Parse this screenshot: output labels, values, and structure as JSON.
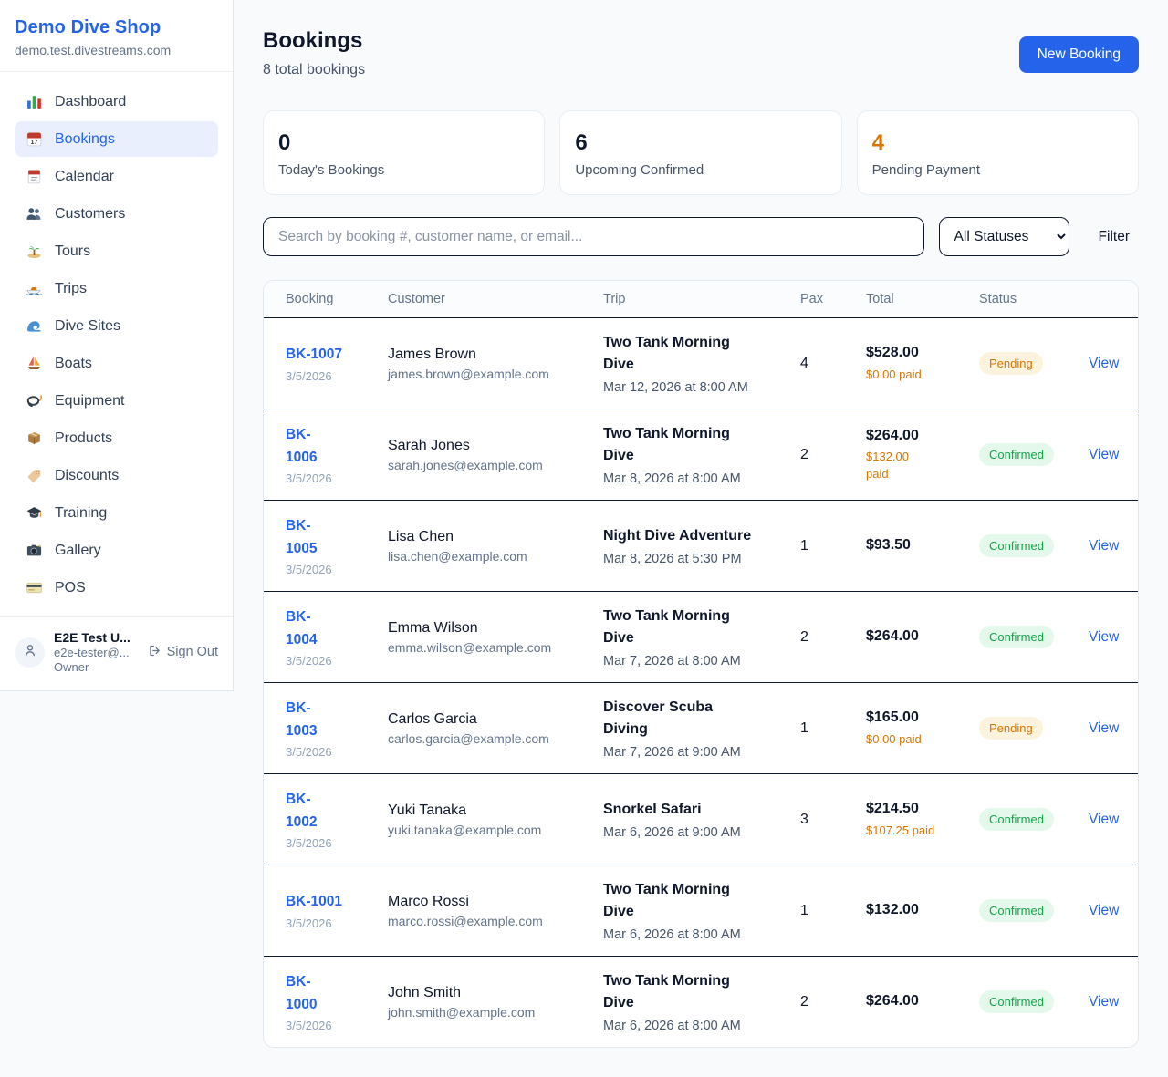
{
  "colors": {
    "accent_blue": "#2563eb",
    "pending_orange": "#d97706",
    "confirmed_green": "#16a34a",
    "page_background": "#f8fafc"
  },
  "sidebar": {
    "brand": {
      "name": "Demo Dive Shop",
      "domain": "demo.test.divestreams.com"
    },
    "items": [
      {
        "label": "Dashboard",
        "icon": "bar-chart-icon",
        "active": false
      },
      {
        "label": "Bookings",
        "icon": "calendar-date-icon",
        "active": true
      },
      {
        "label": "Calendar",
        "icon": "calendar-icon",
        "active": false
      },
      {
        "label": "Customers",
        "icon": "people-icon",
        "active": false
      },
      {
        "label": "Tours",
        "icon": "island-icon",
        "active": false
      },
      {
        "label": "Trips",
        "icon": "speedboat-icon",
        "active": false
      },
      {
        "label": "Dive Sites",
        "icon": "wave-icon",
        "active": false
      },
      {
        "label": "Boats",
        "icon": "sailboat-icon",
        "active": false
      },
      {
        "label": "Equipment",
        "icon": "dive-mask-icon",
        "active": false
      },
      {
        "label": "Products",
        "icon": "box-icon",
        "active": false
      },
      {
        "label": "Discounts",
        "icon": "tag-icon",
        "active": false
      },
      {
        "label": "Training",
        "icon": "graduation-cap-icon",
        "active": false
      },
      {
        "label": "Gallery",
        "icon": "camera-icon",
        "active": false
      },
      {
        "label": "POS",
        "icon": "credit-card-icon",
        "active": false
      }
    ],
    "user": {
      "name": "E2E Test U...",
      "email": "e2e-tester@...",
      "role": "Owner",
      "sign_out_label": "Sign Out"
    }
  },
  "header": {
    "title": "Bookings",
    "subtitle": "8 total bookings",
    "new_booking_label": "New Booking"
  },
  "stats": [
    {
      "value": "0",
      "label": "Today's Bookings",
      "color": "#0f172a"
    },
    {
      "value": "6",
      "label": "Upcoming Confirmed",
      "color": "#0f172a"
    },
    {
      "value": "4",
      "label": "Pending Payment",
      "color": "#d97706"
    }
  ],
  "toolbar": {
    "search_placeholder": "Search by booking #, customer name, or email...",
    "status_filter_value": "All Statuses",
    "filter_label": "Filter"
  },
  "table": {
    "columns": [
      "Booking",
      "Customer",
      "Trip",
      "Pax",
      "Total",
      "Status"
    ],
    "view_label": "View",
    "rows": [
      {
        "id": "BK-1007",
        "date": "3/5/2026",
        "customer": "James Brown",
        "email": "james.brown@example.com",
        "trip": "Two Tank Morning\nDive",
        "trip_date": "Mar 12, 2026 at 8:00 AM",
        "pax": "4",
        "total": "$528.00",
        "paid": "$0.00 paid",
        "status": "Pending"
      },
      {
        "id": "BK-\n1006",
        "date": "3/5/2026",
        "customer": "Sarah Jones",
        "email": "sarah.jones@example.com",
        "trip": "Two Tank Morning\nDive",
        "trip_date": "Mar 8, 2026 at 8:00 AM",
        "pax": "2",
        "total": "$264.00",
        "paid": "$132.00\npaid",
        "status": "Confirmed"
      },
      {
        "id": "BK-\n1005",
        "date": "3/5/2026",
        "customer": "Lisa Chen",
        "email": "lisa.chen@example.com",
        "trip": "Night Dive Adventure",
        "trip_date": "Mar 8, 2026 at 5:30 PM",
        "pax": "1",
        "total": "$93.50",
        "paid": "",
        "status": "Confirmed"
      },
      {
        "id": "BK-\n1004",
        "date": "3/5/2026",
        "customer": "Emma Wilson",
        "email": "emma.wilson@example.com",
        "trip": "Two Tank Morning\nDive",
        "trip_date": "Mar 7, 2026 at 8:00 AM",
        "pax": "2",
        "total": "$264.00",
        "paid": "",
        "status": "Confirmed"
      },
      {
        "id": "BK-\n1003",
        "date": "3/5/2026",
        "customer": "Carlos Garcia",
        "email": "carlos.garcia@example.com",
        "trip": "Discover Scuba\nDiving",
        "trip_date": "Mar 7, 2026 at 9:00 AM",
        "pax": "1",
        "total": "$165.00",
        "paid": "$0.00 paid",
        "status": "Pending"
      },
      {
        "id": "BK-\n1002",
        "date": "3/5/2026",
        "customer": "Yuki Tanaka",
        "email": "yuki.tanaka@example.com",
        "trip": "Snorkel Safari",
        "trip_date": "Mar 6, 2026 at 9:00 AM",
        "pax": "3",
        "total": "$214.50",
        "paid": "$107.25 paid",
        "status": "Confirmed"
      },
      {
        "id": "BK-1001",
        "date": "3/5/2026",
        "customer": "Marco Rossi",
        "email": "marco.rossi@example.com",
        "trip": "Two Tank Morning\nDive",
        "trip_date": "Mar 6, 2026 at 8:00 AM",
        "pax": "1",
        "total": "$132.00",
        "paid": "",
        "status": "Confirmed"
      },
      {
        "id": "BK-\n1000",
        "date": "3/5/2026",
        "customer": "John Smith",
        "email": "john.smith@example.com",
        "trip": "Two Tank Morning\nDive",
        "trip_date": "Mar 6, 2026 at 8:00 AM",
        "pax": "2",
        "total": "$264.00",
        "paid": "",
        "status": "Confirmed"
      }
    ]
  }
}
